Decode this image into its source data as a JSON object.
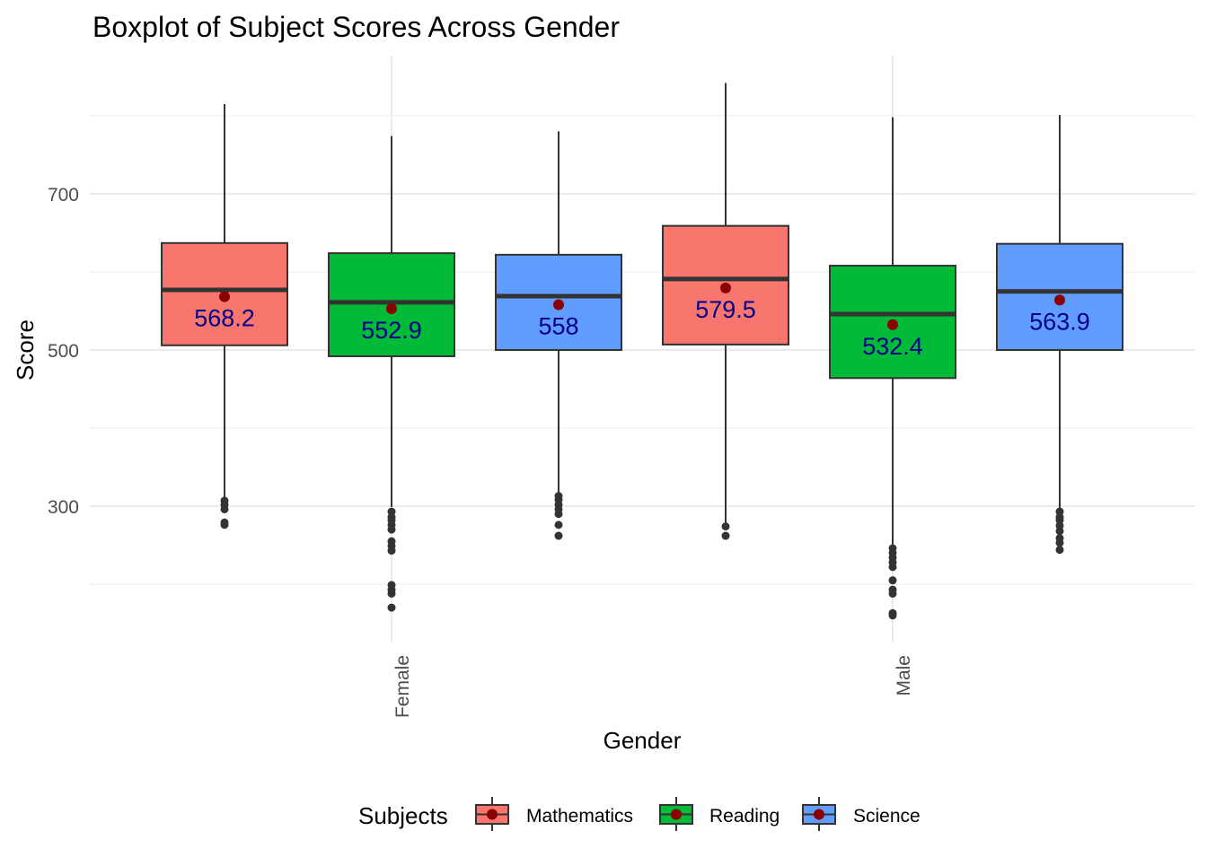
{
  "chart_data": {
    "type": "boxplot",
    "title": "Boxplot of Subject Scores Across Gender",
    "xlabel": "Gender",
    "ylabel": "Score",
    "categories": [
      "Female",
      "Male"
    ],
    "yticks": [
      300,
      500,
      700
    ],
    "yminor": [
      200,
      400,
      600,
      800
    ],
    "ylim": [
      130,
      860
    ],
    "grid": true,
    "legend": {
      "title": "Subjects",
      "position": "bottom",
      "entries": [
        "Mathematics",
        "Reading",
        "Science"
      ]
    },
    "colors": {
      "Mathematics": "#F8766D",
      "Reading": "#00BA38",
      "Science": "#619CFF",
      "mean_point": "#8B0000",
      "mean_label": "#00008B"
    },
    "series": [
      {
        "name": "Mathematics",
        "boxes": [
          {
            "category": "Female",
            "whisker_low": 310,
            "q1": 506,
            "median": 577,
            "q3": 637,
            "whisker_high": 815,
            "mean": 568.2,
            "mean_label": "568.2",
            "outliers": [
              307,
              302,
              296,
              279,
              276
            ]
          },
          {
            "category": "Male",
            "whisker_low": 278,
            "q1": 507,
            "median": 591,
            "q3": 659,
            "whisker_high": 842,
            "mean": 579.5,
            "mean_label": "579.5",
            "outliers": [
              274,
              262
            ]
          }
        ]
      },
      {
        "name": "Reading",
        "boxes": [
          {
            "category": "Female",
            "whisker_low": 299,
            "q1": 492,
            "median": 561,
            "q3": 624,
            "whisker_high": 774,
            "mean": 552.9,
            "mean_label": "552.9",
            "outliers": [
              293,
              286,
              282,
              276,
              270,
              255,
              249,
              243,
              199,
              193,
              188,
              170
            ]
          },
          {
            "category": "Male",
            "whisker_low": 249,
            "q1": 464,
            "median": 546,
            "q3": 608,
            "whisker_high": 798,
            "mean": 532.4,
            "mean_label": "532.4",
            "outliers": [
              246,
              240,
              234,
              228,
              222,
              205,
              193,
              188,
              163,
              160
            ]
          }
        ]
      },
      {
        "name": "Science",
        "boxes": [
          {
            "category": "Female",
            "whisker_low": 316,
            "q1": 500,
            "median": 569,
            "q3": 622,
            "whisker_high": 780,
            "mean": 558,
            "mean_label": "558",
            "outliers": [
              313,
              308,
              302,
              296,
              290,
              276,
              262
            ]
          },
          {
            "category": "Male",
            "whisker_low": 295,
            "q1": 500,
            "median": 575,
            "q3": 636,
            "whisker_high": 801,
            "mean": 563.9,
            "mean_label": "563.9",
            "outliers": [
              293,
              286,
              282,
              275,
              268,
              259,
              253,
              244
            ]
          }
        ]
      }
    ]
  }
}
